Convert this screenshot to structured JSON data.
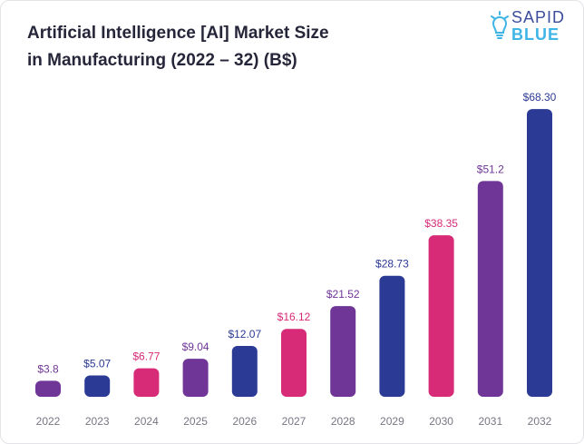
{
  "title": {
    "line1": "Artificial Intelligence [AI] Market Size",
    "line2": "in Manufacturing (2022 – 32)  (B$)"
  },
  "logo": {
    "word1": "SAPID",
    "word2": "BLUE",
    "icon": "lightbulb-icon"
  },
  "colors": {
    "purple": "#6f3597",
    "navy": "#2b3a94",
    "pink": "#d72a77",
    "axis_label": "#777784"
  },
  "chart_data": {
    "type": "bar",
    "title": "Artificial Intelligence [AI] Market Size in Manufacturing (2022 – 32)  (B$)",
    "xlabel": "",
    "ylabel": "",
    "categories": [
      "2022",
      "2023",
      "2024",
      "2025",
      "2026",
      "2027",
      "2028",
      "2029",
      "2030",
      "2031",
      "2032"
    ],
    "values": [
      3.8,
      5.07,
      6.77,
      9.04,
      12.07,
      16.12,
      21.52,
      28.73,
      38.35,
      51.2,
      68.3
    ],
    "labels": [
      "$3.8",
      "$5.07",
      "$6.77",
      "$9.04",
      "$12.07",
      "$16.12",
      "$21.52",
      "$28.73",
      "$38.35",
      "$51.2",
      "$68.30"
    ],
    "bar_colors": [
      "#6f3597",
      "#2b3a94",
      "#d72a77",
      "#6f3597",
      "#2b3a94",
      "#d72a77",
      "#6f3597",
      "#2b3a94",
      "#d72a77",
      "#6f3597",
      "#2b3a94"
    ],
    "grid": false,
    "legend": "none"
  }
}
